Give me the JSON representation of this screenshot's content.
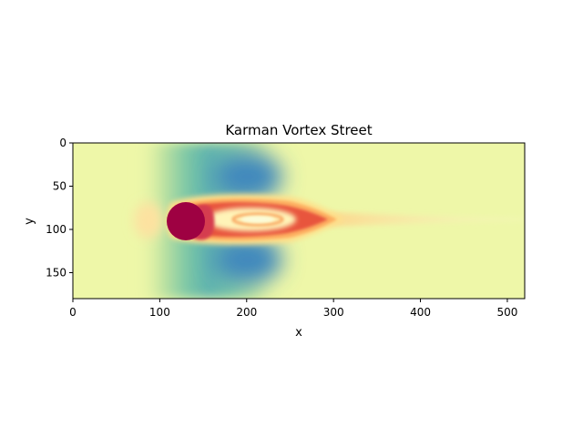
{
  "chart_data": {
    "type": "heatmap",
    "title": "Karman Vortex Street",
    "xlabel": "x",
    "ylabel": "y",
    "xlim": [
      0,
      520
    ],
    "ylim": [
      180,
      0
    ],
    "x_ticks": [
      0,
      100,
      200,
      300,
      400,
      500
    ],
    "y_ticks": [
      0,
      50,
      100,
      150
    ],
    "x_tick_labels": [
      "0",
      "100",
      "200",
      "300",
      "400",
      "500"
    ],
    "y_tick_labels": [
      "0",
      "50",
      "100",
      "150"
    ],
    "colormap": "Spectral_r",
    "colormap_colors": [
      "#5e4fa2",
      "#3288bd",
      "#66c2a5",
      "#abdda4",
      "#e6f598",
      "#fee08b",
      "#fdae61",
      "#f46d43",
      "#d53e4f",
      "#9e0142"
    ],
    "background_colors": {
      "page": "#ffffff",
      "field": "#eef7a8"
    },
    "grid": false,
    "legend": "none",
    "field_features": [
      {
        "feature": "obstacle",
        "center": [
          130,
          90
        ],
        "radius": 20
      },
      {
        "feature": "wake",
        "x_range": [
          110,
          320
        ],
        "y_range": [
          62,
          120
        ]
      },
      {
        "feature": "low-value lobe",
        "center": [
          205,
          45
        ]
      },
      {
        "feature": "low-value lobe",
        "center": [
          205,
          135
        ]
      },
      {
        "feature": "trailing streak",
        "x_range": [
          300,
          520
        ],
        "y": 90
      }
    ]
  }
}
